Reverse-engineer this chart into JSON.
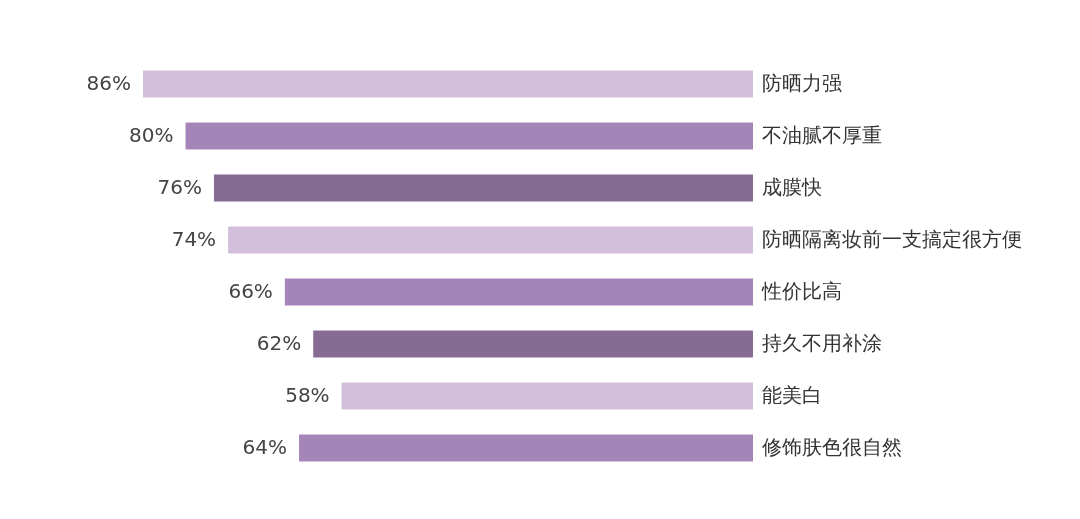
{
  "chart_data": {
    "type": "bar",
    "orientation": "horizontal",
    "categories": [
      "防晒力强",
      "不油腻不厚重",
      "成膜快",
      "防晒隔离妆前一支搞定很方便",
      "性价比高",
      "持久不用补涂",
      "能美白",
      "修饰肤色很自然"
    ],
    "values": [
      86,
      80,
      76,
      74,
      66,
      62,
      58,
      64
    ],
    "colors": [
      "#d1bfdc",
      "#a585b7",
      "#866b93",
      "#d1bfdc",
      "#a585b7",
      "#866b93",
      "#d1bfdc",
      "#a585b7"
    ],
    "value_labels": [
      "86%",
      "80%",
      "76%",
      "74%",
      "66%",
      "62%",
      "58%",
      "64%"
    ]
  }
}
